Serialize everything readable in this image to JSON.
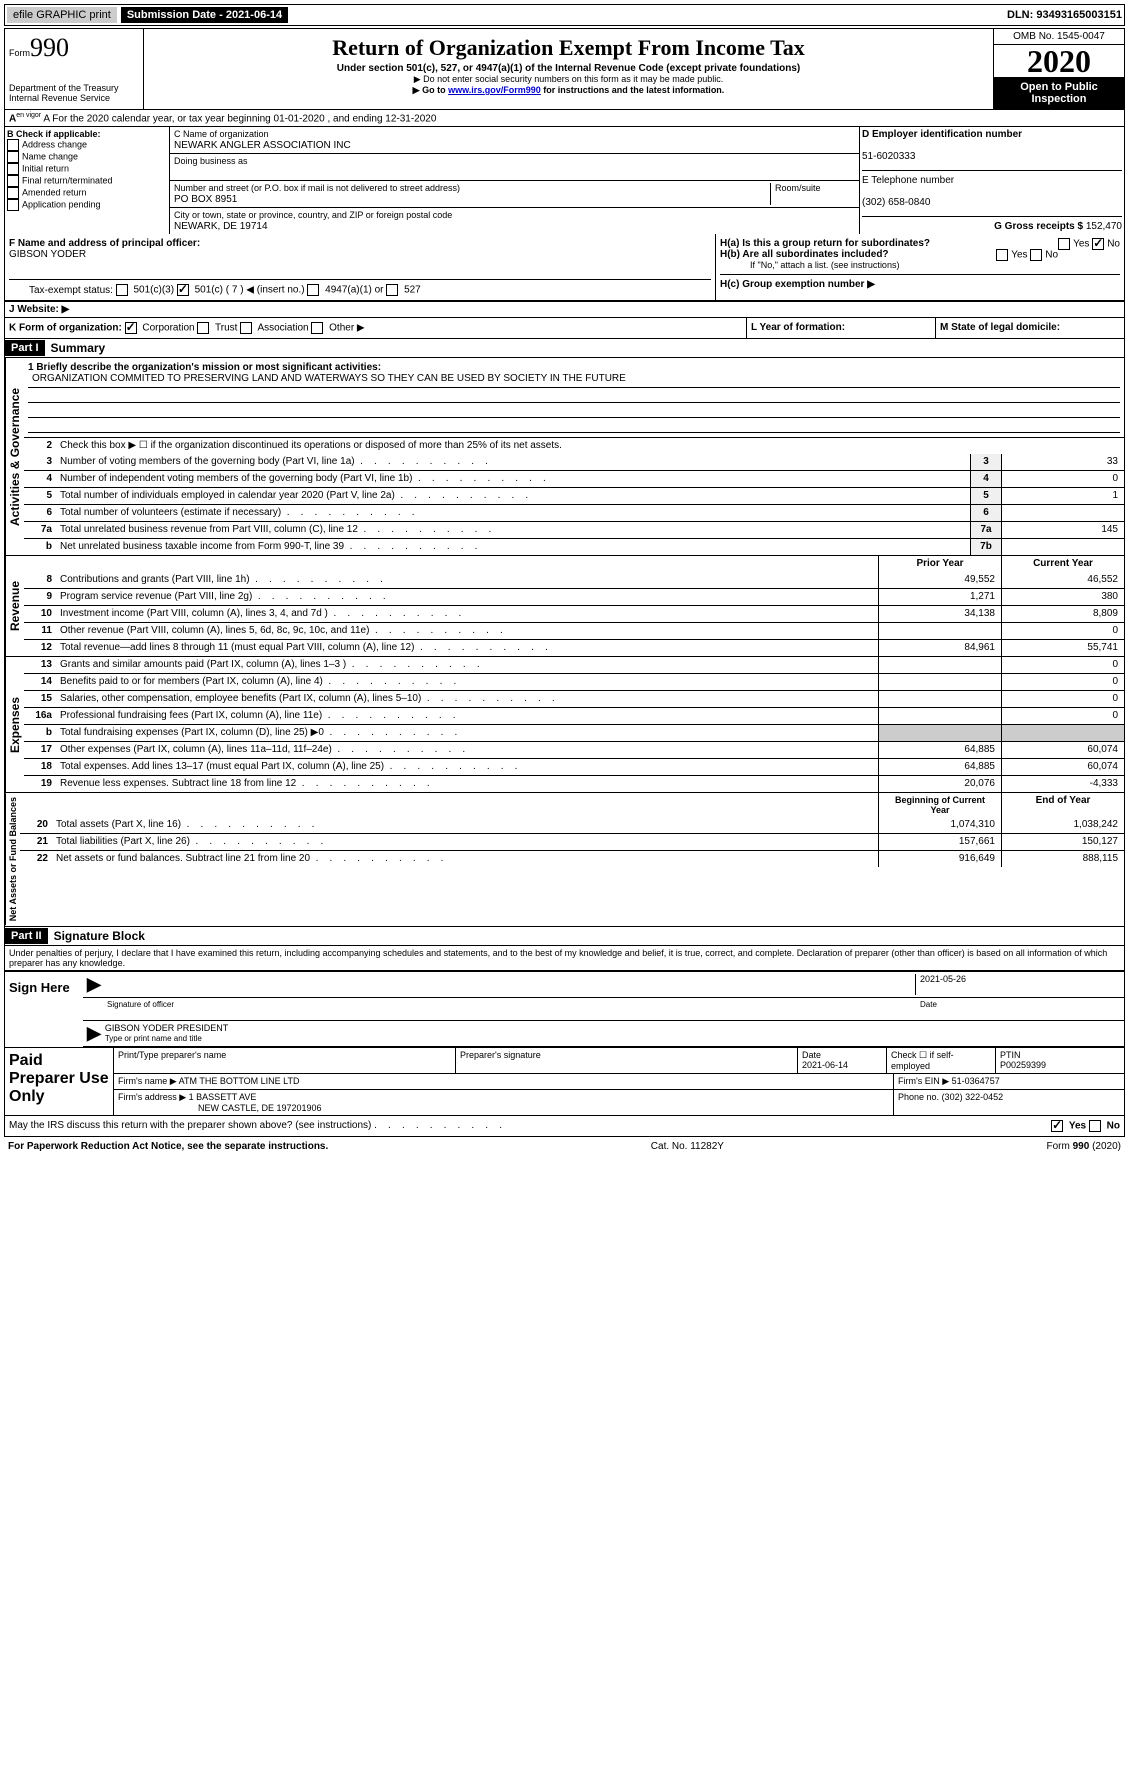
{
  "topbar": {
    "efile": "efile GRAPHIC print",
    "submission": "Submission Date - 2021-06-14",
    "dln": "DLN: 93493165003151"
  },
  "header": {
    "form_label": "Form",
    "form_num": "990",
    "dept": "Department of the Treasury\nInternal Revenue Service",
    "title": "Return of Organization Exempt From Income Tax",
    "subtitle": "Under section 501(c), 527, or 4947(a)(1) of the Internal Revenue Code (except private foundations)",
    "note1": "▶ Do not enter social security numbers on this form as it may be made public.",
    "note2_pre": "▶ Go to ",
    "note2_link": "www.irs.gov/Form990",
    "note2_post": " for instructions and the latest information.",
    "omb": "OMB No. 1545-0047",
    "year": "2020",
    "open": "Open to Public Inspection"
  },
  "row_a": "A For the 2020 calendar year, or tax year beginning 01-01-2020    , and ending 12-31-2020",
  "col_b": {
    "label": "B Check if applicable:",
    "items": [
      "Address change",
      "Name change",
      "Initial return",
      "Final return/terminated",
      "Amended return",
      "Application pending"
    ]
  },
  "col_c": {
    "name_label": "C Name of organization",
    "name": "NEWARK ANGLER ASSOCIATION INC",
    "dba_label": "Doing business as",
    "addr_label": "Number and street (or P.O. box if mail is not delivered to street address)",
    "room_label": "Room/suite",
    "addr": "PO BOX 8951",
    "city_label": "City or town, state or province, country, and ZIP or foreign postal code",
    "city": "NEWARK, DE  19714"
  },
  "col_d": {
    "d_label": "D Employer identification number",
    "ein": "51-6020333",
    "e_label": "E Telephone number",
    "phone": "(302) 658-0840",
    "g_label": "G Gross receipts $",
    "gross": "152,470"
  },
  "row_f": {
    "f_label": "F Name and address of principal officer:",
    "f_name": "GIBSON YODER",
    "ha_label": "H(a)  Is this a group return for subordinates?",
    "hb_label": "H(b)  Are all subordinates included?",
    "hb_note": "If \"No,\" attach a list. (see instructions)",
    "hc_label": "H(c)  Group exemption number ▶",
    "yes": "Yes",
    "no": "No"
  },
  "tax_status": {
    "label": "Tax-exempt status:",
    "opts": [
      "501(c)(3)",
      "501(c) ( 7 ) ◀ (insert no.)",
      "4947(a)(1) or",
      "527"
    ]
  },
  "website": "J    Website: ▶",
  "row_k": "K Form of organization:",
  "k_opts": [
    "Corporation",
    "Trust",
    "Association",
    "Other ▶"
  ],
  "row_l": "L Year of formation:",
  "row_m": "M State of legal domicile:",
  "part1": {
    "header": "Part I",
    "title": "Summary",
    "vert_ag": "Activities & Governance",
    "vert_rev": "Revenue",
    "vert_exp": "Expenses",
    "vert_na": "Net Assets or Fund Balances",
    "l1_label": "1 Briefly describe the organization's mission or most significant activities:",
    "l1_text": "ORGANIZATION COMMITED TO PRESERVING LAND AND WATERWAYS SO THEY CAN BE USED BY SOCIETY IN THE FUTURE",
    "l2": "Check this box ▶ ☐  if the organization discontinued its operations or disposed of more than 25% of its net assets.",
    "lines_ag": [
      {
        "n": "3",
        "t": "Number of voting members of the governing body (Part VI, line 1a)",
        "b": "3",
        "v": "33"
      },
      {
        "n": "4",
        "t": "Number of independent voting members of the governing body (Part VI, line 1b)",
        "b": "4",
        "v": "0"
      },
      {
        "n": "5",
        "t": "Total number of individuals employed in calendar year 2020 (Part V, line 2a)",
        "b": "5",
        "v": "1"
      },
      {
        "n": "6",
        "t": "Total number of volunteers (estimate if necessary)",
        "b": "6",
        "v": ""
      },
      {
        "n": "7a",
        "t": "Total unrelated business revenue from Part VIII, column (C), line 12",
        "b": "7a",
        "v": "145"
      },
      {
        "n": "b",
        "t": "Net unrelated business taxable income from Form 990-T, line 39",
        "b": "7b",
        "v": ""
      }
    ],
    "col_prior": "Prior Year",
    "col_current": "Current Year",
    "lines_rev": [
      {
        "n": "8",
        "t": "Contributions and grants (Part VIII, line 1h)",
        "p": "49,552",
        "c": "46,552"
      },
      {
        "n": "9",
        "t": "Program service revenue (Part VIII, line 2g)",
        "p": "1,271",
        "c": "380"
      },
      {
        "n": "10",
        "t": "Investment income (Part VIII, column (A), lines 3, 4, and 7d )",
        "p": "34,138",
        "c": "8,809"
      },
      {
        "n": "11",
        "t": "Other revenue (Part VIII, column (A), lines 5, 6d, 8c, 9c, 10c, and 11e)",
        "p": "",
        "c": "0"
      },
      {
        "n": "12",
        "t": "Total revenue—add lines 8 through 11 (must equal Part VIII, column (A), line 12)",
        "p": "84,961",
        "c": "55,741"
      }
    ],
    "lines_exp": [
      {
        "n": "13",
        "t": "Grants and similar amounts paid (Part IX, column (A), lines 1–3 )",
        "p": "",
        "c": "0"
      },
      {
        "n": "14",
        "t": "Benefits paid to or for members (Part IX, column (A), line 4)",
        "p": "",
        "c": "0"
      },
      {
        "n": "15",
        "t": "Salaries, other compensation, employee benefits (Part IX, column (A), lines 5–10)",
        "p": "",
        "c": "0"
      },
      {
        "n": "16a",
        "t": "Professional fundraising fees (Part IX, column (A), line 11e)",
        "p": "",
        "c": "0"
      },
      {
        "n": "b",
        "t": "Total fundraising expenses (Part IX, column (D), line 25) ▶0",
        "p": "shaded",
        "c": "shaded"
      },
      {
        "n": "17",
        "t": "Other expenses (Part IX, column (A), lines 11a–11d, 11f–24e)",
        "p": "64,885",
        "c": "60,074"
      },
      {
        "n": "18",
        "t": "Total expenses. Add lines 13–17 (must equal Part IX, column (A), line 25)",
        "p": "64,885",
        "c": "60,074"
      },
      {
        "n": "19",
        "t": "Revenue less expenses. Subtract line 18 from line 12",
        "p": "20,076",
        "c": "-4,333"
      }
    ],
    "col_begin": "Beginning of Current Year",
    "col_end": "End of Year",
    "lines_na": [
      {
        "n": "20",
        "t": "Total assets (Part X, line 16)",
        "p": "1,074,310",
        "c": "1,038,242"
      },
      {
        "n": "21",
        "t": "Total liabilities (Part X, line 26)",
        "p": "157,661",
        "c": "150,127"
      },
      {
        "n": "22",
        "t": "Net assets or fund balances. Subtract line 21 from line 20",
        "p": "916,649",
        "c": "888,115"
      }
    ]
  },
  "part2": {
    "header": "Part II",
    "title": "Signature Block",
    "perjury": "Under penalties of perjury, I declare that I have examined this return, including accompanying schedules and statements, and to the best of my knowledge and belief, it is true, correct, and complete. Declaration of preparer (other than officer) is based on all information of which preparer has any knowledge.",
    "sign_here": "Sign Here",
    "sig_officer": "Signature of officer",
    "sig_date": "2021-05-26",
    "date_label": "Date",
    "officer_name": "GIBSON YODER PRESIDENT",
    "type_name": "Type or print name and title",
    "paid": "Paid Preparer Use Only",
    "prep_name_label": "Print/Type preparer's name",
    "prep_sig_label": "Preparer's signature",
    "prep_date_label": "Date",
    "prep_date": "2021-06-14",
    "check_if": "Check ☐ if self-employed",
    "ptin_label": "PTIN",
    "ptin": "P00259399",
    "firm_name_label": "Firm's name    ▶",
    "firm_name": "ATM THE BOTTOM LINE LTD",
    "firm_ein_label": "Firm's EIN ▶",
    "firm_ein": "51-0364757",
    "firm_addr_label": "Firm's address ▶",
    "firm_addr": "1 BASSETT AVE",
    "firm_city": "NEW CASTLE, DE  197201906",
    "phone_label": "Phone no.",
    "firm_phone": "(302) 322-0452",
    "discuss": "May the IRS discuss this return with the preparer shown above? (see instructions)"
  },
  "footer": {
    "pra": "For Paperwork Reduction Act Notice, see the separate instructions.",
    "cat": "Cat. No. 11282Y",
    "form": "Form 990 (2020)"
  }
}
